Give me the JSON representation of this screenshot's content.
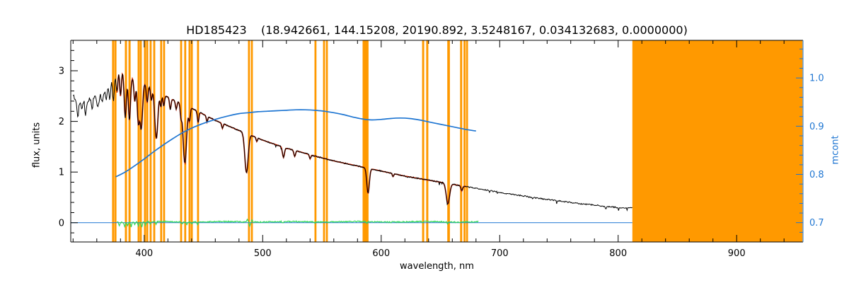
{
  "chart_data": {
    "type": "line",
    "title": "HD185423    (18.942661, 144.15208, 20190.892, 3.5248167, 0.034132683, 0.0000000)",
    "xlabel": "wavelength, nm",
    "ylabel_left": "flux, units",
    "ylabel_right": "mcont",
    "x_range_nm": [
      338,
      956
    ],
    "flux_range": [
      -0.38,
      3.6
    ],
    "mcont_range": [
      0.66,
      1.078
    ],
    "x_ticks": [
      400,
      500,
      600,
      700,
      800,
      900
    ],
    "x_minor_step": 20,
    "flux_ticks": [
      0,
      1,
      2,
      3
    ],
    "mcont_ticks": [
      0.7,
      0.8,
      0.9,
      1.0
    ],
    "legend": "none",
    "grid": false,
    "colors": {
      "observed": "#000000",
      "fit": "#cc2200",
      "mcont": "#1f76d2",
      "residual": "#33d65c",
      "mask": "#ff9900",
      "axis": "#000000",
      "background": "#ffffff"
    },
    "observed": {
      "name": "observed spectrum (black)",
      "range_nm": [
        340,
        812
      ]
    },
    "fit": {
      "name": "synthetic fit (red)",
      "range_nm": [
        377,
        672
      ]
    },
    "zero_line": {
      "name": "zero level (blue)",
      "value": 0,
      "range_nm": [
        338,
        812
      ]
    },
    "noise": {
      "seed": 2019,
      "amp_far_blue": 0.045,
      "amp_blue": 0.022,
      "amp_base": 0.012
    },
    "continuum_points": [
      [
        340,
        2.5
      ],
      [
        344,
        2.38
      ],
      [
        348,
        2.43
      ],
      [
        352,
        2.4
      ],
      [
        356,
        2.48
      ],
      [
        360,
        2.46
      ],
      [
        364,
        2.52
      ],
      [
        368,
        2.62
      ],
      [
        372,
        2.8
      ],
      [
        376,
        2.97
      ],
      [
        379,
        3.03
      ],
      [
        382,
        3.0
      ],
      [
        386,
        2.93
      ],
      [
        390,
        2.87
      ],
      [
        395,
        2.81
      ],
      [
        400,
        2.75
      ],
      [
        405,
        2.68
      ],
      [
        410,
        2.61
      ],
      [
        415,
        2.54
      ],
      [
        420,
        2.48
      ],
      [
        425,
        2.42
      ],
      [
        430,
        2.37
      ],
      [
        435,
        2.31
      ],
      [
        440,
        2.26
      ],
      [
        445,
        2.2
      ],
      [
        450,
        2.14
      ],
      [
        455,
        2.08
      ],
      [
        460,
        2.02
      ],
      [
        465,
        1.97
      ],
      [
        470,
        1.92
      ],
      [
        475,
        1.87
      ],
      [
        480,
        1.82
      ],
      [
        485,
        1.78
      ],
      [
        490,
        1.73
      ],
      [
        495,
        1.68
      ],
      [
        500,
        1.63
      ],
      [
        510,
        1.55
      ],
      [
        520,
        1.47
      ],
      [
        530,
        1.41
      ],
      [
        540,
        1.34
      ],
      [
        550,
        1.28
      ],
      [
        560,
        1.22
      ],
      [
        570,
        1.17
      ],
      [
        580,
        1.12
      ],
      [
        590,
        1.07
      ],
      [
        600,
        1.02
      ],
      [
        610,
        0.97
      ],
      [
        620,
        0.92
      ],
      [
        630,
        0.88
      ],
      [
        640,
        0.84
      ],
      [
        650,
        0.8
      ],
      [
        660,
        0.76
      ],
      [
        670,
        0.72
      ],
      [
        680,
        0.68
      ],
      [
        690,
        0.64
      ],
      [
        700,
        0.6
      ],
      [
        710,
        0.56
      ],
      [
        720,
        0.53
      ],
      [
        730,
        0.49
      ],
      [
        740,
        0.46
      ],
      [
        750,
        0.43
      ],
      [
        760,
        0.4
      ],
      [
        770,
        0.37
      ],
      [
        780,
        0.35
      ],
      [
        790,
        0.32
      ],
      [
        800,
        0.3
      ],
      [
        812,
        0.29
      ]
    ],
    "absorption_lines": [
      {
        "nm": 344,
        "depth": 0.3,
        "width": 0.9
      },
      {
        "nm": 347.5,
        "depth": 0.22,
        "width": 0.9
      },
      {
        "nm": 350.5,
        "depth": 0.28,
        "width": 0.9
      },
      {
        "nm": 356,
        "depth": 0.22,
        "width": 0.9
      },
      {
        "nm": 361,
        "depth": 0.2,
        "width": 0.9
      },
      {
        "nm": 364.5,
        "depth": 0.16,
        "width": 0.8
      },
      {
        "nm": 368,
        "depth": 0.2,
        "width": 0.8
      },
      {
        "nm": 371,
        "depth": 0.32,
        "width": 0.9
      },
      {
        "nm": 374,
        "depth": 0.48,
        "width": 1.0
      },
      {
        "nm": 377,
        "depth": 0.42,
        "width": 1.0
      },
      {
        "nm": 380,
        "depth": 0.52,
        "width": 1.0
      },
      {
        "nm": 384,
        "depth": 0.88,
        "width": 1.3
      },
      {
        "nm": 387.5,
        "depth": 0.88,
        "width": 1.3
      },
      {
        "nm": 392,
        "depth": 0.45,
        "width": 1.0
      },
      {
        "nm": 395,
        "depth": 0.82,
        "width": 1.3
      },
      {
        "nm": 397.5,
        "depth": 0.92,
        "width": 1.5
      },
      {
        "nm": 402.5,
        "depth": 0.35,
        "width": 1.0
      },
      {
        "nm": 406,
        "depth": 0.25,
        "width": 0.9
      },
      {
        "nm": 410.2,
        "depth": 0.95,
        "width": 1.8
      },
      {
        "nm": 414,
        "depth": 0.26,
        "width": 0.9
      },
      {
        "nm": 416.5,
        "depth": 0.22,
        "width": 0.9
      },
      {
        "nm": 422,
        "depth": 0.22,
        "width": 0.9
      },
      {
        "nm": 427,
        "depth": 0.16,
        "width": 0.9
      },
      {
        "nm": 431,
        "depth": 0.25,
        "width": 0.9
      },
      {
        "nm": 434.3,
        "depth": 1.15,
        "width": 2.0
      },
      {
        "nm": 438.2,
        "depth": 0.26,
        "width": 0.9
      },
      {
        "nm": 445.5,
        "depth": 0.22,
        "width": 0.9
      },
      {
        "nm": 453,
        "depth": 0.12,
        "width": 0.8
      },
      {
        "nm": 466,
        "depth": 0.1,
        "width": 0.8
      },
      {
        "nm": 486.3,
        "depth": 0.78,
        "width": 2.0
      },
      {
        "nm": 495,
        "depth": 0.08,
        "width": 0.8
      },
      {
        "nm": 517.5,
        "depth": 0.2,
        "width": 1.2
      },
      {
        "nm": 527,
        "depth": 0.12,
        "width": 1.0
      },
      {
        "nm": 540,
        "depth": 0.08,
        "width": 0.8
      },
      {
        "nm": 588.9,
        "depth": 0.5,
        "width": 1.5
      },
      {
        "nm": 610,
        "depth": 0.06,
        "width": 0.8
      },
      {
        "nm": 656.3,
        "depth": 0.4,
        "width": 2.0
      },
      {
        "nm": 668,
        "depth": 0.1,
        "width": 1.0
      }
    ],
    "mcont_points": [
      [
        376,
        0.795
      ],
      [
        384,
        0.805
      ],
      [
        392,
        0.818
      ],
      [
        400,
        0.832
      ],
      [
        408,
        0.847
      ],
      [
        416,
        0.861
      ],
      [
        424,
        0.874
      ],
      [
        432,
        0.886
      ],
      [
        440,
        0.896
      ],
      [
        448,
        0.904
      ],
      [
        456,
        0.911
      ],
      [
        464,
        0.917
      ],
      [
        472,
        0.922
      ],
      [
        480,
        0.926
      ],
      [
        488,
        0.928
      ],
      [
        496,
        0.93
      ],
      [
        504,
        0.931
      ],
      [
        512,
        0.932
      ],
      [
        520,
        0.933
      ],
      [
        528,
        0.934
      ],
      [
        536,
        0.934
      ],
      [
        544,
        0.933
      ],
      [
        552,
        0.931
      ],
      [
        560,
        0.928
      ],
      [
        568,
        0.924
      ],
      [
        576,
        0.919
      ],
      [
        584,
        0.915
      ],
      [
        592,
        0.913
      ],
      [
        600,
        0.914
      ],
      [
        608,
        0.916
      ],
      [
        616,
        0.917
      ],
      [
        624,
        0.916
      ],
      [
        632,
        0.913
      ],
      [
        640,
        0.909
      ],
      [
        648,
        0.905
      ],
      [
        656,
        0.901
      ],
      [
        664,
        0.897
      ],
      [
        672,
        0.893
      ],
      [
        680,
        0.89
      ]
    ],
    "residual": {
      "name": "fit residual (green)",
      "range_nm": [
        377,
        682
      ],
      "baseline": 0.018,
      "noise_amp": 0.012,
      "spikes": [
        {
          "nm": 379,
          "v": -0.07
        },
        {
          "nm": 383.5,
          "v": -0.1
        },
        {
          "nm": 386,
          "v": -0.06
        },
        {
          "nm": 389,
          "v": -0.09
        },
        {
          "nm": 392,
          "v": -0.05
        },
        {
          "nm": 395,
          "v": -0.08
        },
        {
          "nm": 398,
          "v": -0.11
        },
        {
          "nm": 401,
          "v": -0.06
        },
        {
          "nm": 405,
          "v": -0.05
        },
        {
          "nm": 410,
          "v": -0.05
        },
        {
          "nm": 432,
          "v": -0.04
        },
        {
          "nm": 436,
          "v": -0.05
        },
        {
          "nm": 440,
          "v": -0.04
        },
        {
          "nm": 445,
          "v": -0.05
        },
        {
          "nm": 487,
          "v": 0.05
        },
        {
          "nm": 489,
          "v": -0.08
        },
        {
          "nm": 491,
          "v": 0.04
        },
        {
          "nm": 517,
          "v": -0.03
        },
        {
          "nm": 544,
          "v": -0.03
        },
        {
          "nm": 588,
          "v": -0.04
        },
        {
          "nm": 635,
          "v": -0.03
        },
        {
          "nm": 656,
          "v": -0.03
        }
      ]
    },
    "masked_bands_nm": [
      [
        372.9,
        374.7
      ],
      [
        374.9,
        376.6
      ],
      [
        383.7,
        385.5
      ],
      [
        386.7,
        388.5
      ],
      [
        394.4,
        396.1
      ],
      [
        396.3,
        398.0
      ],
      [
        399.8,
        401.5
      ],
      [
        401.7,
        403.4
      ],
      [
        404.6,
        406.3
      ],
      [
        407.6,
        409.3
      ],
      [
        413.5,
        415.2
      ],
      [
        415.9,
        417.6
      ],
      [
        430.3,
        432.0
      ],
      [
        433.8,
        435.5
      ],
      [
        437.4,
        439.1
      ],
      [
        439.3,
        441.0
      ],
      [
        444.6,
        446.3
      ],
      [
        487.6,
        489.3
      ],
      [
        490.0,
        491.7
      ],
      [
        543.7,
        545.4
      ],
      [
        550.9,
        552.6
      ],
      [
        553.3,
        555.0
      ],
      [
        584.3,
        589.3
      ],
      [
        634.5,
        636.3
      ],
      [
        638.0,
        639.8
      ],
      [
        655.8,
        658.0
      ],
      [
        666.6,
        668.4
      ],
      [
        669.5,
        671.2
      ],
      [
        671.6,
        673.3
      ],
      [
        812.0,
        955.6
      ]
    ]
  }
}
